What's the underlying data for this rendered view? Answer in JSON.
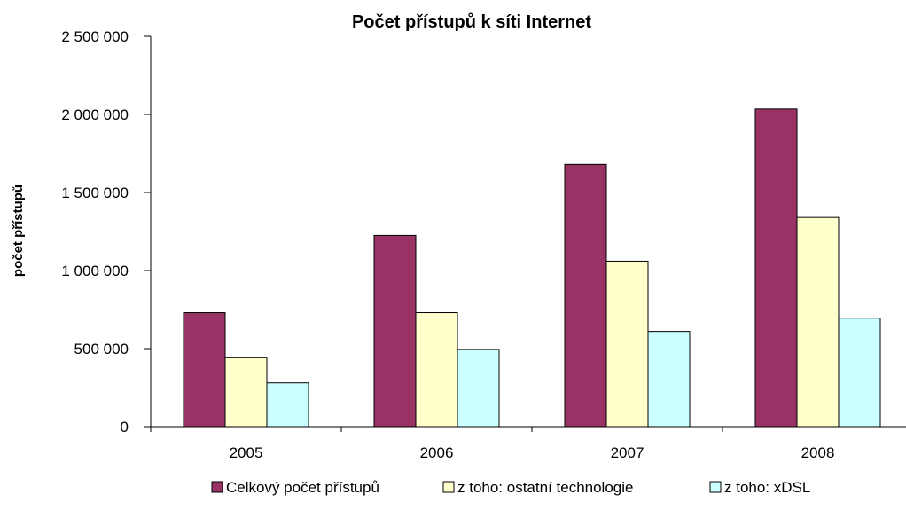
{
  "chart_data": {
    "type": "bar",
    "title": "Počet přístupů k síti Internet",
    "xlabel": "",
    "ylabel": "počet přístupů",
    "categories": [
      "2005",
      "2006",
      "2007",
      "2008"
    ],
    "ylim": [
      0,
      2500000
    ],
    "yticks": [
      0,
      500000,
      1000000,
      1500000,
      2000000,
      2500000
    ],
    "ytick_labels": [
      "0",
      "500 000",
      "1 000 000",
      "1 500 000",
      "2 000 000",
      "2 500 000"
    ],
    "grid": false,
    "legend_position": "bottom",
    "series": [
      {
        "name": "Celkový počet přístupů",
        "color": "#993366",
        "values": [
          730000,
          1225000,
          1680000,
          2035000
        ]
      },
      {
        "name": "z toho: ostatní technologie",
        "color": "#FFFFCC",
        "values": [
          445000,
          730000,
          1060000,
          1340000
        ]
      },
      {
        "name": "z toho: xDSL",
        "color": "#CCFFFF",
        "values": [
          280000,
          495000,
          610000,
          695000
        ]
      }
    ]
  }
}
